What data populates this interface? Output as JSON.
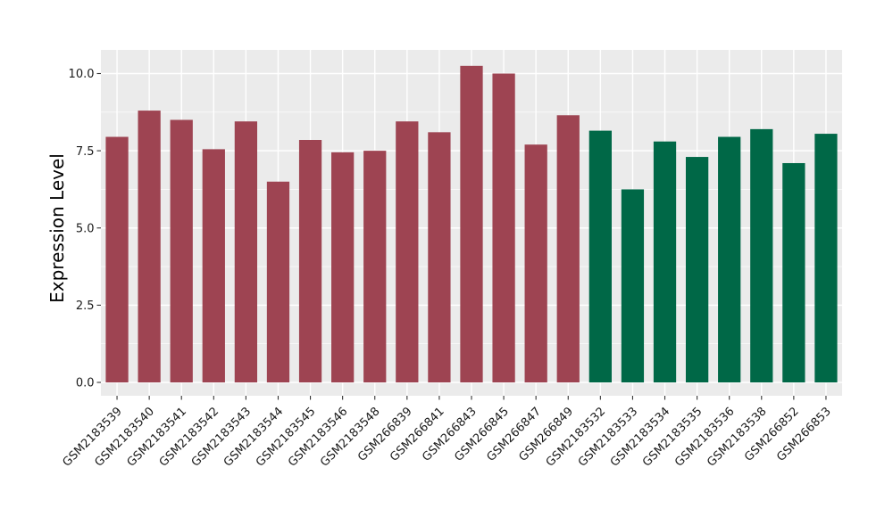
{
  "chart_data": {
    "type": "bar",
    "title": "",
    "xlabel": "",
    "ylabel": "Expression Level",
    "legend": "none",
    "grid": true,
    "panel_background": "#EBEBEB",
    "grid_color": "#FFFFFF",
    "axis_text_color": "#1A1A1A",
    "axis_title_color": "#000000",
    "tick_mark_color": "#333333",
    "bar_color_maroon": "#9E4452",
    "bar_color_green": "#006847",
    "categories": [
      "GSM2183539",
      "GSM2183540",
      "GSM2183541",
      "GSM2183542",
      "GSM2183543",
      "GSM2183544",
      "GSM2183545",
      "GSM2183546",
      "GSM2183548",
      "GSM266839",
      "GSM266841",
      "GSM266843",
      "GSM266845",
      "GSM266847",
      "GSM266849",
      "GSM2183532",
      "GSM2183533",
      "GSM2183534",
      "GSM2183535",
      "GSM2183536",
      "GSM2183538",
      "GSM266852",
      "GSM266853"
    ],
    "values": [
      7.95,
      8.8,
      8.5,
      7.55,
      8.45,
      6.5,
      7.85,
      7.45,
      7.5,
      8.45,
      8.1,
      10.25,
      10.0,
      7.7,
      8.65,
      8.15,
      6.25,
      7.8,
      7.3,
      7.95,
      8.2,
      7.1,
      8.05
    ],
    "bar_colors": [
      "#9E4452",
      "#9E4452",
      "#9E4452",
      "#9E4452",
      "#9E4452",
      "#9E4452",
      "#9E4452",
      "#9E4452",
      "#9E4452",
      "#9E4452",
      "#9E4452",
      "#9E4452",
      "#9E4452",
      "#9E4452",
      "#9E4452",
      "#006847",
      "#006847",
      "#006847",
      "#006847",
      "#006847",
      "#006847",
      "#006847",
      "#006847"
    ],
    "y_axis": {
      "tick_values": [
        0,
        2.5,
        5,
        7.5,
        10
      ],
      "tick_labels": [
        "0.0",
        "2.5",
        "5.0",
        "7.5",
        "10.0"
      ],
      "minor_tick_values": [
        1.25,
        3.75,
        6.25,
        8.75
      ],
      "range_shown": [
        -0.43,
        10.76
      ]
    }
  }
}
